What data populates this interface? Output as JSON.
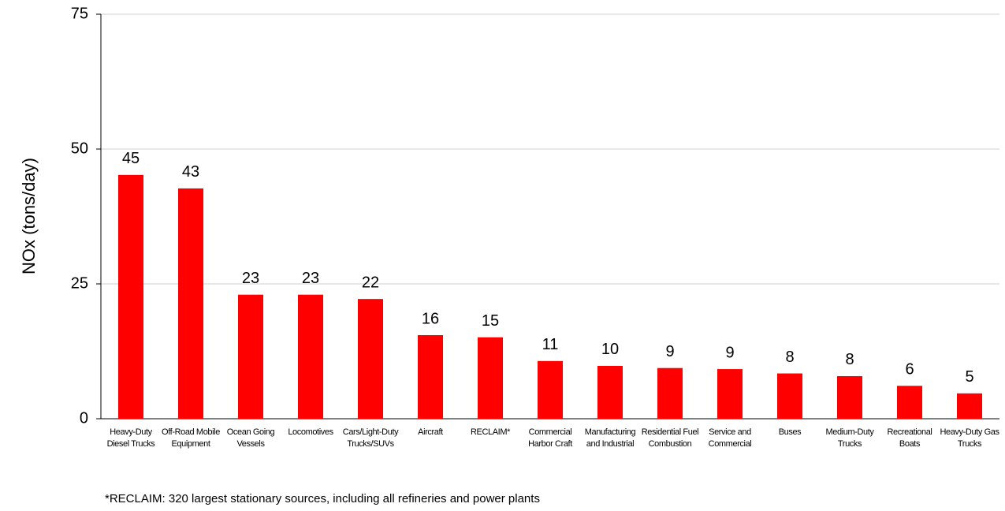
{
  "chart_data": {
    "type": "bar",
    "y_label": "NOx (tons/day)",
    "categories": [
      "Heavy-Duty Diesel Trucks",
      "Off-Road Mobile Equipment",
      "Ocean Going Vessels",
      "Locomotives",
      "Cars/Light-Duty Trucks/SUVs",
      "Aircraft",
      "RECLAIM*",
      "Commercial Harbor Craft",
      "Manufacturing and Industrial",
      "Residential Fuel Combustion",
      "Service and Commercial",
      "Buses",
      "Medium-Duty Trucks",
      "Recreational Boats",
      "Heavy-Duty Gas Trucks"
    ],
    "values": [
      45.2,
      42.7,
      23.0,
      23.0,
      22.2,
      15.5,
      15.1,
      10.7,
      9.8,
      9.4,
      9.2,
      8.4,
      7.9,
      6.1,
      4.7
    ],
    "value_labels": [
      "45",
      "43",
      "23",
      "23",
      "22",
      "16",
      "15",
      "11",
      "10",
      "9",
      "9",
      "8",
      "8",
      "6",
      "5"
    ],
    "color": "#ff0000",
    "ylim": [
      0,
      75
    ],
    "yticks": [
      0,
      25,
      50,
      75
    ],
    "grid": true,
    "footnote": "*RECLAIM:  320 largest stationary sources, including all refineries and power plants"
  }
}
